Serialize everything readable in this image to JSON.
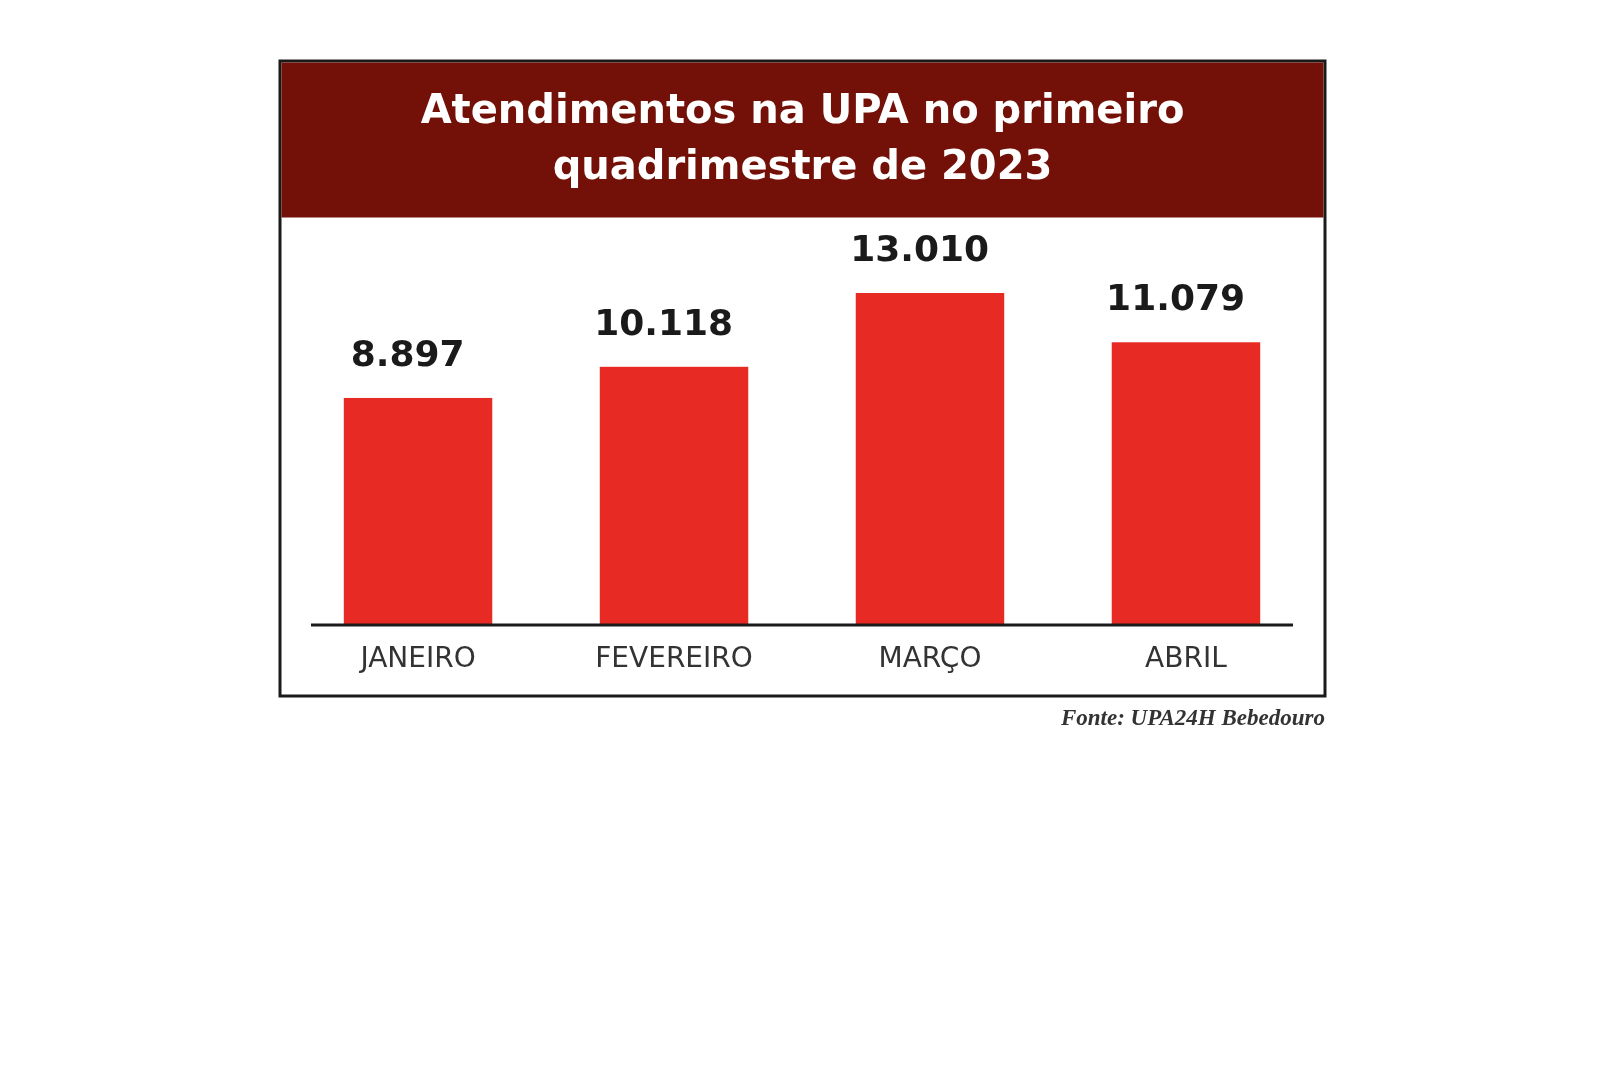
{
  "chart_data": {
    "type": "bar",
    "title": "Atendimentos na UPA no primeiro quadrimestre de 2023",
    "categories": [
      "JANEIRO",
      "FEVEREIRO",
      "MARÇO",
      "ABRIL"
    ],
    "values": [
      8897,
      10118,
      13010,
      11079
    ],
    "value_labels": [
      "8.897",
      "10.118",
      "13.010",
      "11.079"
    ],
    "color": "#e82a25",
    "annotations": [
      "Fonte: UPA24H Bebedouro"
    ]
  }
}
